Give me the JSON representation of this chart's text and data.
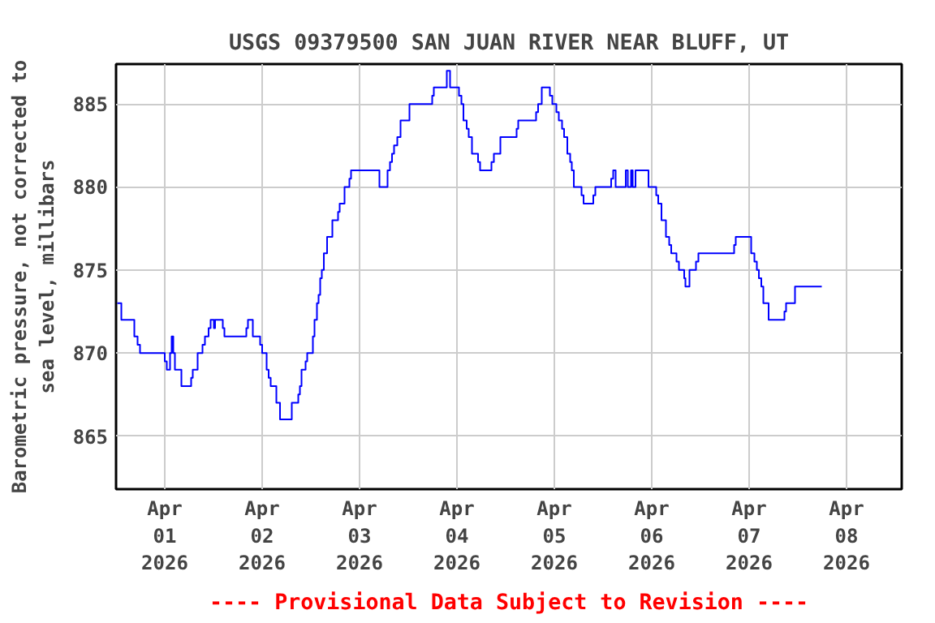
{
  "chart_data": {
    "type": "step",
    "title": "USGS 09379500 SAN JUAN RIVER NEAR BLUFF, UT",
    "ylabel": "Barometric pressure, not corrected to\nsea level, millibars",
    "annotations": [
      "---- Provisional Data Subject to Revision ----"
    ],
    "series": [
      {
        "color": "#0000ff",
        "x": [
          "2026-03-31T12:18",
          "2026-03-31T13:18",
          "2026-03-31T16:30",
          "2026-03-31T17:18",
          "2026-03-31T17:54",
          "2026-04-01T00:00",
          "2026-04-01T00:30",
          "2026-04-01T01:18",
          "2026-04-01T01:42",
          "2026-04-01T02:06",
          "2026-04-01T02:30",
          "2026-04-01T04:06",
          "2026-04-01T06:30",
          "2026-04-01T06:54",
          "2026-04-01T08:06",
          "2026-04-01T09:18",
          "2026-04-01T09:54",
          "2026-04-01T10:48",
          "2026-04-01T11:18",
          "2026-04-01T12:06",
          "2026-04-01T12:24",
          "2026-04-01T14:18",
          "2026-04-01T14:42",
          "2026-04-01T20:06",
          "2026-04-01T20:30",
          "2026-04-01T21:42",
          "2026-04-01T23:30",
          "2026-04-02T00:00",
          "2026-04-02T01:06",
          "2026-04-02T01:36",
          "2026-04-02T02:06",
          "2026-04-02T03:30",
          "2026-04-02T04:24",
          "2026-04-02T07:18",
          "2026-04-02T08:54",
          "2026-04-02T09:18",
          "2026-04-02T09:42",
          "2026-04-02T10:42",
          "2026-04-02T11:06",
          "2026-04-02T12:30",
          "2026-04-02T12:54",
          "2026-04-02T13:30",
          "2026-04-02T13:54",
          "2026-04-02T14:18",
          "2026-04-02T14:42",
          "2026-04-02T15:12",
          "2026-04-02T16:00",
          "2026-04-02T17:18",
          "2026-04-02T18:42",
          "2026-04-02T19:06",
          "2026-04-02T20:18",
          "2026-04-02T21:30",
          "2026-04-02T21:54",
          "2026-04-03T04:54",
          "2026-04-03T06:54",
          "2026-04-03T07:30",
          "2026-04-03T08:00",
          "2026-04-03T08:30",
          "2026-04-03T09:18",
          "2026-04-03T10:06",
          "2026-04-03T12:18",
          "2026-04-03T17:54",
          "2026-04-03T18:18",
          "2026-04-03T21:30",
          "2026-04-03T22:18",
          "2026-04-04T00:30",
          "2026-04-04T01:06",
          "2026-04-04T01:36",
          "2026-04-04T02:24",
          "2026-04-04T02:54",
          "2026-04-04T03:42",
          "2026-04-04T05:12",
          "2026-04-04T05:42",
          "2026-04-04T08:30",
          "2026-04-04T09:06",
          "2026-04-04T10:42",
          "2026-04-04T14:42",
          "2026-04-04T15:06",
          "2026-04-04T19:30",
          "2026-04-04T20:00",
          "2026-04-04T20:54",
          "2026-04-04T22:54",
          "2026-04-04T23:30",
          "2026-04-05T00:30",
          "2026-04-05T01:06",
          "2026-04-05T01:54",
          "2026-04-05T02:24",
          "2026-04-05T03:12",
          "2026-04-05T03:54",
          "2026-04-05T04:18",
          "2026-04-05T04:48",
          "2026-04-05T06:42",
          "2026-04-05T07:12",
          "2026-04-05T09:36",
          "2026-04-05T10:06",
          "2026-04-05T14:00",
          "2026-04-05T14:30",
          "2026-04-05T15:06",
          "2026-04-05T17:36",
          "2026-04-05T18:06",
          "2026-04-05T18:54",
          "2026-04-05T19:18",
          "2026-04-05T20:00",
          "2026-04-05T23:12",
          "2026-04-06T01:06",
          "2026-04-06T01:36",
          "2026-04-06T02:24",
          "2026-04-06T03:30",
          "2026-04-06T04:18",
          "2026-04-06T04:48",
          "2026-04-06T06:06",
          "2026-04-06T06:42",
          "2026-04-06T08:00",
          "2026-04-06T08:18",
          "2026-04-06T09:18",
          "2026-04-06T10:54",
          "2026-04-06T11:30",
          "2026-04-06T20:18",
          "2026-04-06T20:42",
          "2026-04-07T00:30",
          "2026-04-07T01:18",
          "2026-04-07T01:54",
          "2026-04-07T02:24",
          "2026-04-07T03:00",
          "2026-04-07T03:30",
          "2026-04-07T04:48",
          "2026-04-07T08:42",
          "2026-04-07T09:06",
          "2026-04-07T11:18",
          "2026-04-07T17:54"
        ],
        "values": [
          873,
          872,
          871,
          870.5,
          870,
          869.5,
          869,
          870,
          871,
          870,
          869,
          868,
          868.5,
          869,
          870,
          870.5,
          871,
          871.5,
          872,
          871.5,
          872,
          871.5,
          871,
          871.5,
          872,
          871,
          870.5,
          870,
          869,
          868.5,
          868,
          867,
          866,
          867,
          867.5,
          868,
          869,
          869.5,
          870,
          871,
          872,
          873,
          873.5,
          874.5,
          875,
          876,
          877,
          878,
          878.5,
          879,
          880,
          880.5,
          881,
          880,
          881,
          881.5,
          882,
          882.5,
          883,
          884,
          885,
          885.5,
          886,
          887,
          886,
          885.5,
          885,
          884,
          883.5,
          883,
          882,
          881.5,
          881,
          881.5,
          882,
          883,
          883.5,
          884,
          884.5,
          885,
          886,
          885.5,
          885,
          884.5,
          884,
          883.5,
          883,
          882,
          881.5,
          881,
          880,
          879.5,
          879,
          879.5,
          880,
          880.5,
          881,
          880,
          881,
          880,
          881,
          880,
          881,
          880,
          879.5,
          879,
          878,
          877,
          876.5,
          876,
          875.5,
          875,
          874.5,
          874,
          875,
          875.5,
          876,
          876.5,
          877,
          876,
          875.5,
          875,
          874.5,
          874,
          873,
          872,
          872.5,
          873,
          874,
          874
        ]
      }
    ],
    "xlim": [
      "2026-03-31T12:00",
      "2026-04-08T13:36"
    ],
    "xticks": [
      {
        "value": "2026-04-01",
        "label": "Apr\n01\n2026"
      },
      {
        "value": "2026-04-02",
        "label": "Apr\n02\n2026"
      },
      {
        "value": "2026-04-03",
        "label": "Apr\n03\n2026"
      },
      {
        "value": "2026-04-04",
        "label": "Apr\n04\n2026"
      },
      {
        "value": "2026-04-05",
        "label": "Apr\n05\n2026"
      },
      {
        "value": "2026-04-06",
        "label": "Apr\n06\n2026"
      },
      {
        "value": "2026-04-07",
        "label": "Apr\n07\n2026"
      },
      {
        "value": "2026-04-08",
        "label": "Apr\n08\n2026"
      }
    ],
    "ylim": [
      861.8,
      887.4
    ],
    "yticks": [
      865,
      870,
      875,
      880,
      885
    ],
    "grid": true
  }
}
